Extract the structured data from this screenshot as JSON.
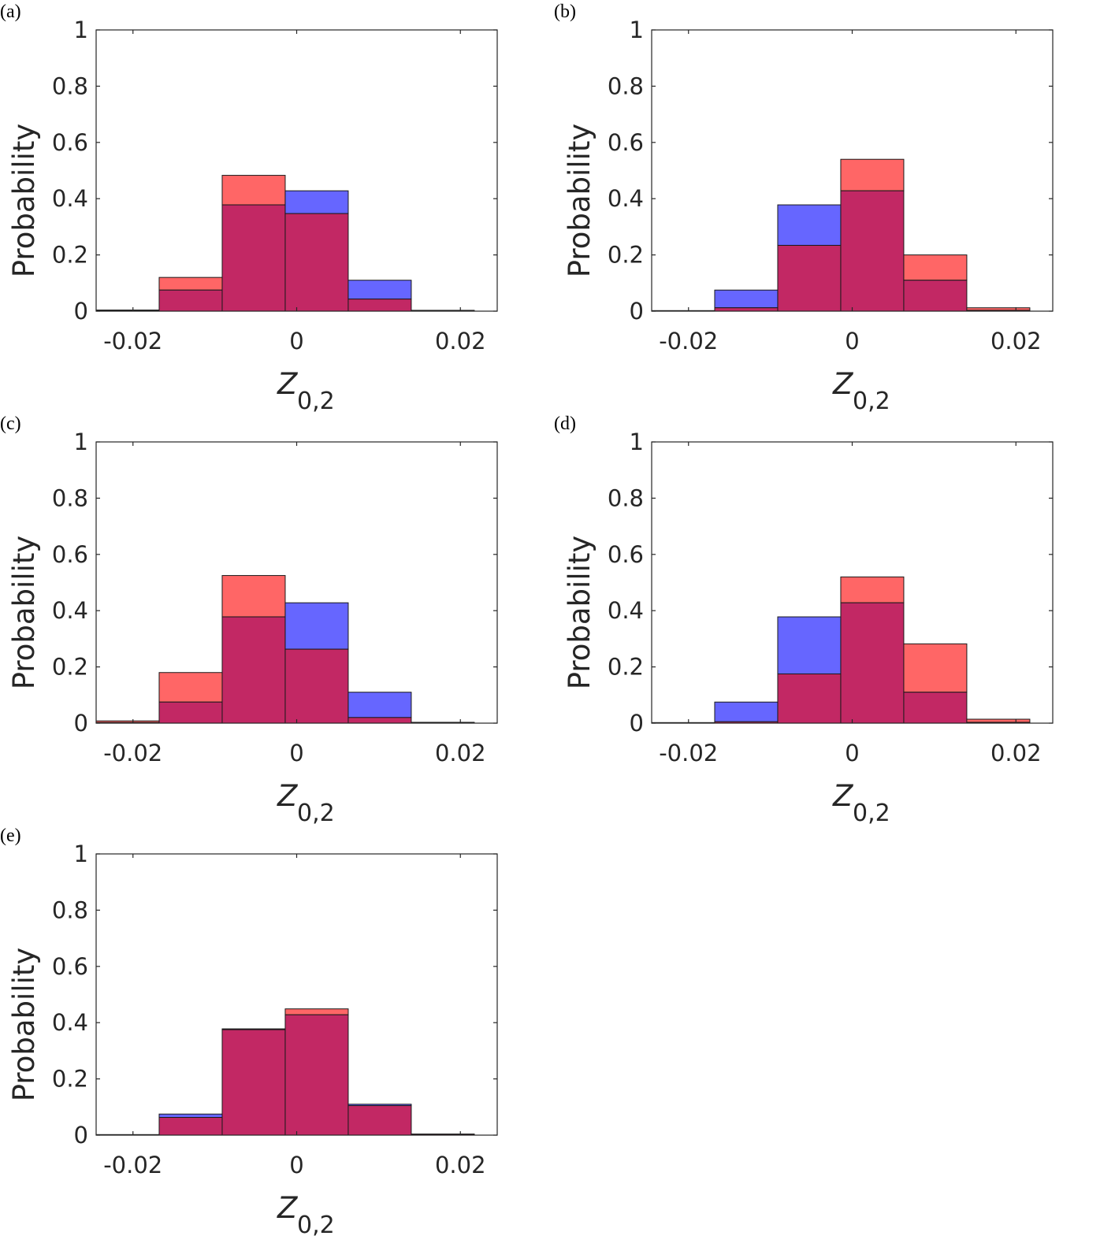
{
  "colors": {
    "blue_fill": "#6666ff",
    "red_fill": "#ff6666",
    "overlap_fill": "#c22864",
    "axes": "#262626",
    "bar_edge": "#1a1a1a"
  },
  "chart_data": [
    {
      "type": "bar",
      "panel_label": "(a)",
      "title": "",
      "xlabel_main": "Z",
      "xlabel_sub": "0,2",
      "ylabel": "Probability",
      "bin_edges": [
        -0.0245,
        -0.0168,
        -0.0091,
        -0.0014,
        0.0063,
        0.014,
        0.0217
      ],
      "xlim": [
        -0.0245,
        0.0245
      ],
      "ylim": [
        0,
        1
      ],
      "xticks": [
        -0.02,
        0,
        0.02
      ],
      "xtick_labels": [
        "-0.02",
        "0",
        "0.02"
      ],
      "yticks": [
        0,
        0.2,
        0.4,
        0.6,
        0.8,
        1
      ],
      "ytick_labels": [
        "0",
        "0.2",
        "0.4",
        "0.6",
        "0.8",
        "1"
      ],
      "series": [
        {
          "name": "blue",
          "values": [
            0.002,
            0.075,
            0.378,
            0.428,
            0.11,
            0.003
          ]
        },
        {
          "name": "red",
          "values": [
            0.004,
            0.12,
            0.483,
            0.347,
            0.043,
            0.001
          ]
        }
      ]
    },
    {
      "type": "bar",
      "panel_label": "(b)",
      "title": "",
      "xlabel_main": "Z",
      "xlabel_sub": "0,2",
      "ylabel": "Probability",
      "bin_edges": [
        -0.0245,
        -0.0168,
        -0.0091,
        -0.0014,
        0.0063,
        0.014,
        0.0217
      ],
      "xlim": [
        -0.0245,
        0.0245
      ],
      "ylim": [
        0,
        1
      ],
      "xticks": [
        -0.02,
        0,
        0.02
      ],
      "xtick_labels": [
        "-0.02",
        "0",
        "0.02"
      ],
      "yticks": [
        0,
        0.2,
        0.4,
        0.6,
        0.8,
        1
      ],
      "ytick_labels": [
        "0",
        "0.2",
        "0.4",
        "0.6",
        "0.8",
        "1"
      ],
      "series": [
        {
          "name": "blue",
          "values": [
            0.002,
            0.075,
            0.378,
            0.428,
            0.11,
            0.003
          ]
        },
        {
          "name": "red",
          "values": [
            0.001,
            0.012,
            0.234,
            0.54,
            0.2,
            0.012
          ]
        }
      ]
    },
    {
      "type": "bar",
      "panel_label": "(c)",
      "title": "",
      "xlabel_main": "Z",
      "xlabel_sub": "0,2",
      "ylabel": "Probability",
      "bin_edges": [
        -0.0245,
        -0.0168,
        -0.0091,
        -0.0014,
        0.0063,
        0.014,
        0.0217
      ],
      "xlim": [
        -0.0245,
        0.0245
      ],
      "ylim": [
        0,
        1
      ],
      "xticks": [
        -0.02,
        0,
        0.02
      ],
      "xtick_labels": [
        "-0.02",
        "0",
        "0.02"
      ],
      "yticks": [
        0,
        0.2,
        0.4,
        0.6,
        0.8,
        1
      ],
      "ytick_labels": [
        "0",
        "0.2",
        "0.4",
        "0.6",
        "0.8",
        "1"
      ],
      "series": [
        {
          "name": "blue",
          "values": [
            0.002,
            0.075,
            0.378,
            0.428,
            0.11,
            0.003
          ]
        },
        {
          "name": "red",
          "values": [
            0.008,
            0.18,
            0.525,
            0.263,
            0.02,
            0.001
          ]
        }
      ]
    },
    {
      "type": "bar",
      "panel_label": "(d)",
      "title": "",
      "xlabel_main": "Z",
      "xlabel_sub": "0,2",
      "ylabel": "Probability",
      "bin_edges": [
        -0.0245,
        -0.0168,
        -0.0091,
        -0.0014,
        0.0063,
        0.014,
        0.0217
      ],
      "xlim": [
        -0.0245,
        0.0245
      ],
      "ylim": [
        0,
        1
      ],
      "xticks": [
        -0.02,
        0,
        0.02
      ],
      "xtick_labels": [
        "-0.02",
        "0",
        "0.02"
      ],
      "yticks": [
        0,
        0.2,
        0.4,
        0.6,
        0.8,
        1
      ],
      "ytick_labels": [
        "0",
        "0.2",
        "0.4",
        "0.6",
        "0.8",
        "1"
      ],
      "series": [
        {
          "name": "blue",
          "values": [
            0.002,
            0.075,
            0.378,
            0.428,
            0.11,
            0.003
          ]
        },
        {
          "name": "red",
          "values": [
            0.0,
            0.005,
            0.175,
            0.52,
            0.282,
            0.014
          ]
        }
      ]
    },
    {
      "type": "bar",
      "panel_label": "(e)",
      "title": "",
      "xlabel_main": "Z",
      "xlabel_sub": "0,2",
      "ylabel": "Probability",
      "bin_edges": [
        -0.0245,
        -0.0168,
        -0.0091,
        -0.0014,
        0.0063,
        0.014,
        0.0217
      ],
      "xlim": [
        -0.0245,
        0.0245
      ],
      "ylim": [
        0,
        1
      ],
      "xticks": [
        -0.02,
        0,
        0.02
      ],
      "xtick_labels": [
        "-0.02",
        "0",
        "0.02"
      ],
      "yticks": [
        0,
        0.2,
        0.4,
        0.6,
        0.8,
        1
      ],
      "ytick_labels": [
        "0",
        "0.2",
        "0.4",
        "0.6",
        "0.8",
        "1"
      ],
      "series": [
        {
          "name": "blue",
          "values": [
            0.002,
            0.075,
            0.378,
            0.428,
            0.11,
            0.003
          ]
        },
        {
          "name": "red",
          "values": [
            0.001,
            0.063,
            0.375,
            0.449,
            0.105,
            0.004
          ]
        }
      ]
    }
  ]
}
